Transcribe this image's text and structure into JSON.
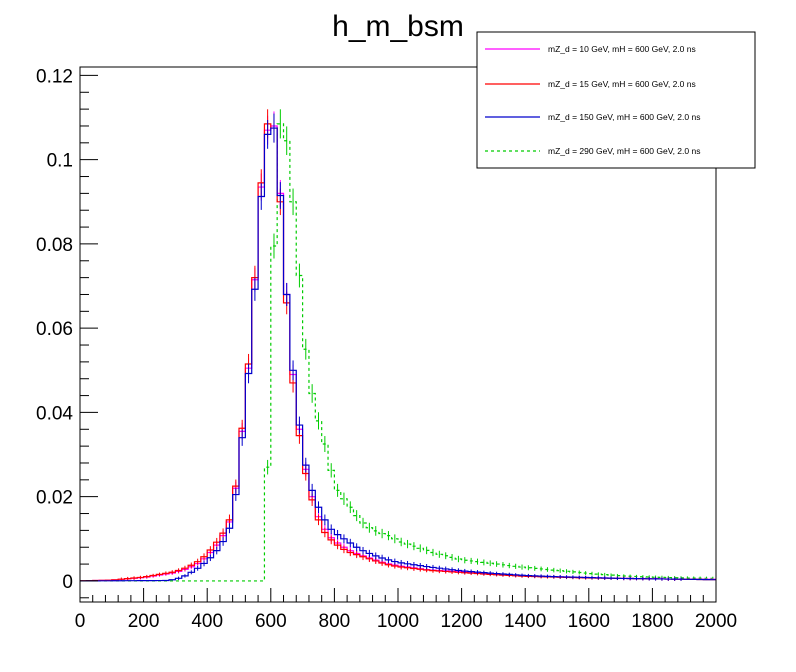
{
  "chart_data": {
    "type": "histogram",
    "title": "h_m_bsm",
    "xlabel": "",
    "ylabel": "",
    "xlim": [
      0,
      2000
    ],
    "ylim": [
      -0.005,
      0.122
    ],
    "x_ticks": [
      0,
      200,
      400,
      600,
      800,
      1000,
      1200,
      1400,
      1600,
      1800,
      2000
    ],
    "x_tick_labels": [
      "0",
      "200",
      "400",
      "600",
      "800",
      "1000",
      "1200",
      "1400",
      "1600",
      "1800",
      "2000"
    ],
    "y_ticks": [
      0,
      0.02,
      0.04,
      0.06,
      0.08,
      0.1,
      0.12
    ],
    "y_tick_labels": [
      "0",
      "0.02",
      "0.04",
      "0.06",
      "0.08",
      "0.1",
      "0.12"
    ],
    "bin_width": 20,
    "legend_position": "top-right",
    "series": [
      {
        "name": "mZ_d = 10 GeV, mH = 600 GeV, 2.0 ns",
        "color": "#ff00ff",
        "style": "solid",
        "points": [
          [
            0,
            0
          ],
          [
            100,
            0.0002
          ],
          [
            200,
            0.0008
          ],
          [
            300,
            0.002
          ],
          [
            340,
            0.003
          ],
          [
            380,
            0.0045
          ],
          [
            400,
            0.006
          ],
          [
            420,
            0.0075
          ],
          [
            440,
            0.0095
          ],
          [
            460,
            0.012
          ],
          [
            480,
            0.016
          ],
          [
            500,
            0.028
          ],
          [
            520,
            0.043
          ],
          [
            540,
            0.058
          ],
          [
            560,
            0.085
          ],
          [
            580,
            0.102
          ],
          [
            600,
            0.112
          ],
          [
            620,
            0.104
          ],
          [
            640,
            0.08
          ],
          [
            660,
            0.056
          ],
          [
            680,
            0.042
          ],
          [
            700,
            0.03
          ],
          [
            720,
            0.023
          ],
          [
            740,
            0.017
          ],
          [
            760,
            0.0135
          ],
          [
            780,
            0.011
          ],
          [
            800,
            0.0095
          ],
          [
            840,
            0.0075
          ],
          [
            880,
            0.0062
          ],
          [
            920,
            0.0052
          ],
          [
            960,
            0.0042
          ],
          [
            1000,
            0.0036
          ],
          [
            1100,
            0.0026
          ],
          [
            1200,
            0.0022
          ],
          [
            1300,
            0.0016
          ],
          [
            1400,
            0.0012
          ],
          [
            1500,
            0.001
          ],
          [
            1600,
            0.0008
          ],
          [
            1700,
            0.0006
          ],
          [
            1800,
            0.0005
          ],
          [
            1900,
            0.0004
          ],
          [
            1980,
            0.0004
          ]
        ]
      },
      {
        "name": "mZ_d = 15 GeV, mH = 600 GeV, 2.0 ns",
        "color": "#ff0000",
        "style": "solid",
        "points": [
          [
            0,
            0
          ],
          [
            100,
            0.0002
          ],
          [
            200,
            0.0009
          ],
          [
            300,
            0.0022
          ],
          [
            340,
            0.0033
          ],
          [
            380,
            0.005
          ],
          [
            400,
            0.0065
          ],
          [
            420,
            0.0082
          ],
          [
            440,
            0.0102
          ],
          [
            460,
            0.0125
          ],
          [
            480,
            0.0165
          ],
          [
            500,
            0.0285
          ],
          [
            520,
            0.044
          ],
          [
            540,
            0.059
          ],
          [
            560,
            0.085
          ],
          [
            580,
            0.104
          ],
          [
            600,
            0.113
          ],
          [
            620,
            0.102
          ],
          [
            640,
            0.078
          ],
          [
            660,
            0.054
          ],
          [
            680,
            0.04
          ],
          [
            700,
            0.029
          ],
          [
            720,
            0.022
          ],
          [
            740,
            0.0165
          ],
          [
            760,
            0.0125
          ],
          [
            780,
            0.0105
          ],
          [
            800,
            0.009
          ],
          [
            840,
            0.007
          ],
          [
            880,
            0.006
          ],
          [
            920,
            0.005
          ],
          [
            960,
            0.004
          ],
          [
            1000,
            0.0034
          ],
          [
            1100,
            0.0025
          ],
          [
            1200,
            0.002
          ],
          [
            1300,
            0.0015
          ],
          [
            1400,
            0.0011
          ],
          [
            1500,
            0.0009
          ],
          [
            1600,
            0.0007
          ],
          [
            1700,
            0.0006
          ],
          [
            1800,
            0.0005
          ],
          [
            1900,
            0.0004
          ],
          [
            1980,
            0.0003
          ]
        ]
      },
      {
        "name": "mZ_d = 150 GeV, mH = 600 GeV, 2.0 ns",
        "color": "#0000cc",
        "style": "solid",
        "points": [
          [
            0,
            0
          ],
          [
            280,
            0.0001
          ],
          [
            320,
            0.0008
          ],
          [
            340,
            0.0016
          ],
          [
            360,
            0.0025
          ],
          [
            380,
            0.0035
          ],
          [
            400,
            0.0048
          ],
          [
            420,
            0.0062
          ],
          [
            440,
            0.0082
          ],
          [
            460,
            0.0105
          ],
          [
            480,
            0.0145
          ],
          [
            500,
            0.0265
          ],
          [
            520,
            0.0415
          ],
          [
            540,
            0.057
          ],
          [
            560,
            0.0815
          ],
          [
            580,
            0.101
          ],
          [
            600,
            0.111
          ],
          [
            620,
            0.104
          ],
          [
            640,
            0.079
          ],
          [
            660,
            0.057
          ],
          [
            680,
            0.043
          ],
          [
            700,
            0.031
          ],
          [
            720,
            0.024
          ],
          [
            740,
            0.019
          ],
          [
            760,
            0.016
          ],
          [
            780,
            0.013
          ],
          [
            800,
            0.0115
          ],
          [
            840,
            0.0095
          ],
          [
            880,
            0.0075
          ],
          [
            920,
            0.0062
          ],
          [
            960,
            0.0052
          ],
          [
            1000,
            0.0044
          ],
          [
            1100,
            0.0033
          ],
          [
            1200,
            0.0024
          ],
          [
            1300,
            0.0018
          ],
          [
            1400,
            0.0013
          ],
          [
            1500,
            0.001
          ],
          [
            1600,
            0.0008
          ],
          [
            1700,
            0.0006
          ],
          [
            1800,
            0.0005
          ],
          [
            1900,
            0.0004
          ],
          [
            1980,
            0.0003
          ]
        ]
      },
      {
        "name": "mZ_d = 290 GeV, mH = 600 GeV, 2.0 ns",
        "color": "#00cc00",
        "style": "dashed",
        "points": [
          [
            0,
            0
          ],
          [
            580,
            0
          ],
          [
            600,
            0.054
          ],
          [
            620,
            0.105
          ],
          [
            640,
            0.112
          ],
          [
            660,
            0.097
          ],
          [
            680,
            0.083
          ],
          [
            700,
            0.062
          ],
          [
            720,
            0.048
          ],
          [
            740,
            0.041
          ],
          [
            760,
            0.035
          ],
          [
            780,
            0.03
          ],
          [
            800,
            0.0225
          ],
          [
            820,
            0.0205
          ],
          [
            840,
            0.0185
          ],
          [
            860,
            0.0165
          ],
          [
            880,
            0.0145
          ],
          [
            900,
            0.013
          ],
          [
            940,
            0.0115
          ],
          [
            980,
            0.0105
          ],
          [
            1000,
            0.0095
          ],
          [
            1040,
            0.0085
          ],
          [
            1080,
            0.0075
          ],
          [
            1120,
            0.0065
          ],
          [
            1160,
            0.0058
          ],
          [
            1200,
            0.005
          ],
          [
            1260,
            0.0045
          ],
          [
            1300,
            0.0041
          ],
          [
            1400,
            0.0032
          ],
          [
            1500,
            0.0025
          ],
          [
            1600,
            0.0018
          ],
          [
            1700,
            0.0012
          ],
          [
            1800,
            0.0009
          ],
          [
            1900,
            0.0007
          ],
          [
            1980,
            0.0006
          ]
        ]
      }
    ]
  }
}
